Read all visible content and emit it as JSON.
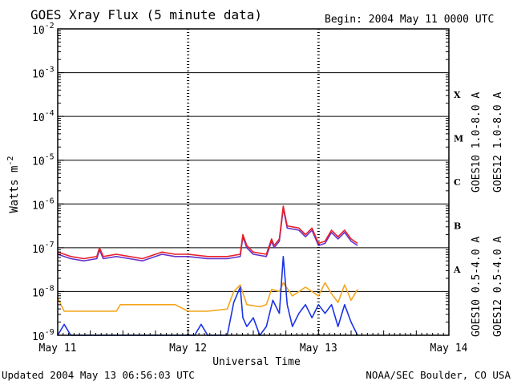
{
  "header": {
    "title": "GOES Xray Flux (5 minute data)",
    "begin": "Begin:  2004 May 11 0000 UTC"
  },
  "footer": {
    "updated": "Updated 2004 May 13 06:56:03 UTC",
    "credit": "NOAA/SEC Boulder, CO USA"
  },
  "chart_data": {
    "type": "line",
    "title": "GOES Xray Flux (5 minute data)",
    "xlabel": "Universal Time",
    "ylabel": "Watts m",
    "ylabel_sup": "-2",
    "y_scale": "log",
    "ylim": [
      1e-09,
      0.01
    ],
    "xlim": [
      0,
      3
    ],
    "x_unit": "days since 2004 May 11 0000 UTC",
    "x_ticks": [
      {
        "x": 0,
        "label": "May 11"
      },
      {
        "x": 1,
        "label": "May 12"
      },
      {
        "x": 2,
        "label": "May 13"
      },
      {
        "x": 3,
        "label": "May 14"
      }
    ],
    "y_ticks": [
      {
        "exp": -2,
        "base": "10",
        "sup": "-2"
      },
      {
        "exp": -3,
        "base": "10",
        "sup": "-3"
      },
      {
        "exp": -4,
        "base": "10",
        "sup": "-4"
      },
      {
        "exp": -5,
        "base": "10",
        "sup": "-5"
      },
      {
        "exp": -6,
        "base": "10",
        "sup": "-6"
      },
      {
        "exp": -7,
        "base": "10",
        "sup": "-7"
      },
      {
        "exp": -8,
        "base": "10",
        "sup": "-8"
      },
      {
        "exp": -9,
        "base": "10",
        "sup": "-9"
      }
    ],
    "flare_classes": [
      {
        "label": "X",
        "exp": -3.5
      },
      {
        "label": "M",
        "exp": -4.5
      },
      {
        "label": "C",
        "exp": -5.5
      },
      {
        "label": "B",
        "exp": -6.5
      },
      {
        "label": "A",
        "exp": -7.5
      }
    ],
    "hlines": [
      -3,
      -4,
      -5,
      -6,
      -7,
      -8
    ],
    "day_dividers": [
      1,
      2
    ],
    "grid": true,
    "legend_position": "right",
    "series": [
      {
        "name": "GOES10 1.0-8.0 A",
        "color": "#6633cc",
        "points": [
          [
            0,
            -7.15
          ],
          [
            0.1,
            -7.25
          ],
          [
            0.2,
            -7.3
          ],
          [
            0.3,
            -7.25
          ],
          [
            0.32,
            -7.05
          ],
          [
            0.35,
            -7.25
          ],
          [
            0.45,
            -7.2
          ],
          [
            0.55,
            -7.25
          ],
          [
            0.65,
            -7.3
          ],
          [
            0.8,
            -7.15
          ],
          [
            0.9,
            -7.2
          ],
          [
            1.0,
            -7.2
          ],
          [
            1.15,
            -7.25
          ],
          [
            1.3,
            -7.25
          ],
          [
            1.4,
            -7.2
          ],
          [
            1.42,
            -6.75
          ],
          [
            1.45,
            -7.0
          ],
          [
            1.5,
            -7.15
          ],
          [
            1.6,
            -7.2
          ],
          [
            1.64,
            -6.85
          ],
          [
            1.66,
            -7.0
          ],
          [
            1.7,
            -6.85
          ],
          [
            1.73,
            -6.1
          ],
          [
            1.76,
            -6.55
          ],
          [
            1.85,
            -6.6
          ],
          [
            1.9,
            -6.75
          ],
          [
            1.95,
            -6.6
          ],
          [
            2.0,
            -6.95
          ],
          [
            2.05,
            -6.9
          ],
          [
            2.1,
            -6.65
          ],
          [
            2.15,
            -6.8
          ],
          [
            2.2,
            -6.65
          ],
          [
            2.25,
            -6.85
          ],
          [
            2.3,
            -6.95
          ]
        ]
      },
      {
        "name": "GOES12 1.0-8.0 A",
        "color": "#e6202a",
        "points": [
          [
            0,
            -7.1
          ],
          [
            0.1,
            -7.2
          ],
          [
            0.2,
            -7.25
          ],
          [
            0.3,
            -7.2
          ],
          [
            0.32,
            -7.0
          ],
          [
            0.35,
            -7.2
          ],
          [
            0.45,
            -7.15
          ],
          [
            0.55,
            -7.2
          ],
          [
            0.65,
            -7.25
          ],
          [
            0.8,
            -7.1
          ],
          [
            0.9,
            -7.15
          ],
          [
            1.0,
            -7.15
          ],
          [
            1.15,
            -7.2
          ],
          [
            1.3,
            -7.2
          ],
          [
            1.4,
            -7.15
          ],
          [
            1.42,
            -6.7
          ],
          [
            1.45,
            -6.95
          ],
          [
            1.5,
            -7.1
          ],
          [
            1.6,
            -7.15
          ],
          [
            1.64,
            -6.8
          ],
          [
            1.66,
            -6.95
          ],
          [
            1.7,
            -6.8
          ],
          [
            1.73,
            -6.05
          ],
          [
            1.76,
            -6.5
          ],
          [
            1.85,
            -6.55
          ],
          [
            1.9,
            -6.7
          ],
          [
            1.95,
            -6.55
          ],
          [
            2.0,
            -6.9
          ],
          [
            2.05,
            -6.85
          ],
          [
            2.1,
            -6.6
          ],
          [
            2.15,
            -6.75
          ],
          [
            2.2,
            -6.6
          ],
          [
            2.25,
            -6.8
          ],
          [
            2.3,
            -6.9
          ]
        ]
      },
      {
        "name": "GOES10 0.5-4.0 A",
        "color": "#f4a51c",
        "points": [
          [
            0,
            -8.15
          ],
          [
            0.05,
            -8.45
          ],
          [
            0.45,
            -8.45
          ],
          [
            0.48,
            -8.3
          ],
          [
            0.7,
            -8.3
          ],
          [
            0.9,
            -8.3
          ],
          [
            1.0,
            -8.45
          ],
          [
            1.15,
            -8.45
          ],
          [
            1.3,
            -8.4
          ],
          [
            1.35,
            -8.0
          ],
          [
            1.4,
            -7.85
          ],
          [
            1.45,
            -8.3
          ],
          [
            1.55,
            -8.35
          ],
          [
            1.6,
            -8.3
          ],
          [
            1.64,
            -7.95
          ],
          [
            1.7,
            -8.0
          ],
          [
            1.73,
            -7.8
          ],
          [
            1.8,
            -8.1
          ],
          [
            1.9,
            -7.9
          ],
          [
            2.0,
            -8.1
          ],
          [
            2.05,
            -7.8
          ],
          [
            2.1,
            -8.05
          ],
          [
            2.15,
            -8.25
          ],
          [
            2.2,
            -7.85
          ],
          [
            2.25,
            -8.2
          ],
          [
            2.3,
            -7.95
          ]
        ]
      },
      {
        "name": "GOES12 0.5-4.0 A",
        "color": "#1a33e6",
        "points": [
          [
            0,
            -9.0
          ],
          [
            0.05,
            -8.75
          ],
          [
            0.1,
            -9.0
          ],
          [
            0.5,
            -9.0
          ],
          [
            0.9,
            -9.0
          ],
          [
            1.05,
            -9.0
          ],
          [
            1.1,
            -8.75
          ],
          [
            1.15,
            -9.0
          ],
          [
            1.3,
            -9.0
          ],
          [
            1.35,
            -8.25
          ],
          [
            1.4,
            -7.9
          ],
          [
            1.42,
            -8.6
          ],
          [
            1.45,
            -8.8
          ],
          [
            1.5,
            -8.6
          ],
          [
            1.55,
            -9.0
          ],
          [
            1.6,
            -8.8
          ],
          [
            1.65,
            -8.2
          ],
          [
            1.7,
            -8.5
          ],
          [
            1.73,
            -7.2
          ],
          [
            1.76,
            -8.3
          ],
          [
            1.8,
            -8.8
          ],
          [
            1.85,
            -8.5
          ],
          [
            1.9,
            -8.3
          ],
          [
            1.95,
            -8.6
          ],
          [
            2.0,
            -8.3
          ],
          [
            2.05,
            -8.5
          ],
          [
            2.1,
            -8.3
          ],
          [
            2.15,
            -8.8
          ],
          [
            2.2,
            -8.3
          ],
          [
            2.25,
            -8.7
          ],
          [
            2.3,
            -9.0
          ]
        ]
      }
    ]
  }
}
